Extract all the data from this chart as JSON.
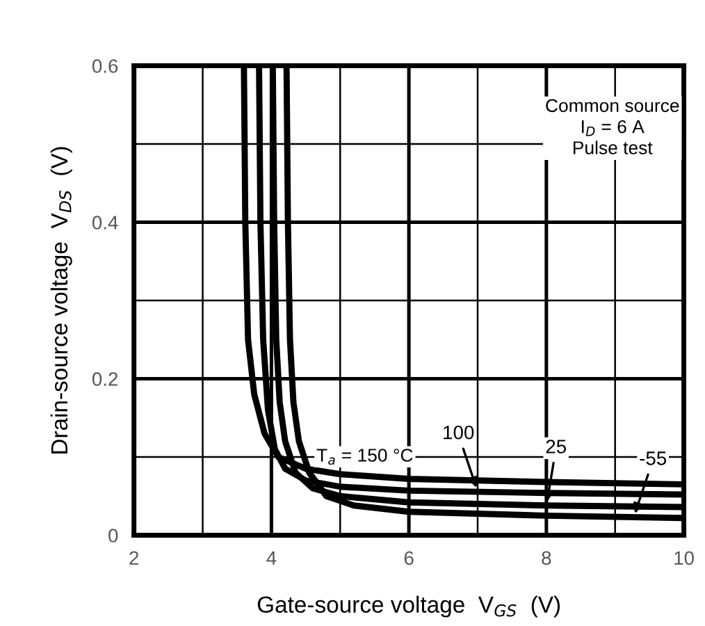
{
  "chart_data": {
    "type": "line",
    "xlabel": "Gate-source voltage  V$_{GS}$  (V)",
    "ylabel": "Drain-source voltage  V$_{DS}$  (V)",
    "xlim": [
      2,
      10
    ],
    "ylim": [
      0,
      0.6
    ],
    "xticks": [
      2,
      {
        "value": 3,
        "label": null
      },
      4,
      {
        "value": 5,
        "label": null
      },
      6,
      {
        "value": 7,
        "label": null
      },
      8,
      {
        "value": 9,
        "label": null
      },
      10
    ],
    "yticks": [
      0,
      {
        "value": 0.1,
        "label": null
      },
      0.2,
      {
        "value": 0.3,
        "label": null
      },
      0.4,
      {
        "value": 0.5,
        "label": null
      },
      0.6
    ],
    "grid": true,
    "line_style": "solid",
    "marker": "none",
    "series": [
      {
        "color": "#000000",
        "x": [
          3.6,
          3.62,
          3.66,
          3.75,
          3.9,
          4.1,
          4.5,
          5,
          6,
          8,
          10
        ],
        "values": [
          0.6,
          0.4,
          0.25,
          0.18,
          0.13,
          0.1,
          0.085,
          0.078,
          0.072,
          0.068,
          0.065
        ]
      },
      {
        "color": "#000000",
        "x": [
          3.82,
          3.84,
          3.88,
          3.95,
          4.05,
          4.2,
          4.5,
          5,
          6,
          8,
          10
        ],
        "values": [
          0.6,
          0.4,
          0.25,
          0.16,
          0.11,
          0.085,
          0.07,
          0.062,
          0.057,
          0.054,
          0.052
        ]
      },
      {
        "color": "#000000",
        "x": [
          4.02,
          4.04,
          4.07,
          4.12,
          4.2,
          4.35,
          4.6,
          5,
          6,
          8,
          10
        ],
        "values": [
          0.6,
          0.4,
          0.25,
          0.17,
          0.12,
          0.08,
          0.06,
          0.05,
          0.042,
          0.038,
          0.036
        ]
      },
      {
        "color": "#000000",
        "x": [
          4.22,
          4.24,
          4.27,
          4.32,
          4.4,
          4.55,
          4.8,
          5.2,
          6,
          8,
          10
        ],
        "values": [
          0.6,
          0.4,
          0.25,
          0.17,
          0.12,
          0.08,
          0.05,
          0.038,
          0.03,
          0.025,
          0.022
        ]
      }
    ],
    "annotations": [
      "Common source\nI$_{D}$ = 6 A\nPulse test",
      "T$_{a}$ = 150 °C",
      {
        "text": "100",
        "x": 7.0,
        "y": 0.056
      },
      {
        "text": "25",
        "x": 8.0,
        "y": 0.038
      },
      {
        "text": "-55",
        "x": 9.27,
        "y": 0.023
      }
    ]
  }
}
